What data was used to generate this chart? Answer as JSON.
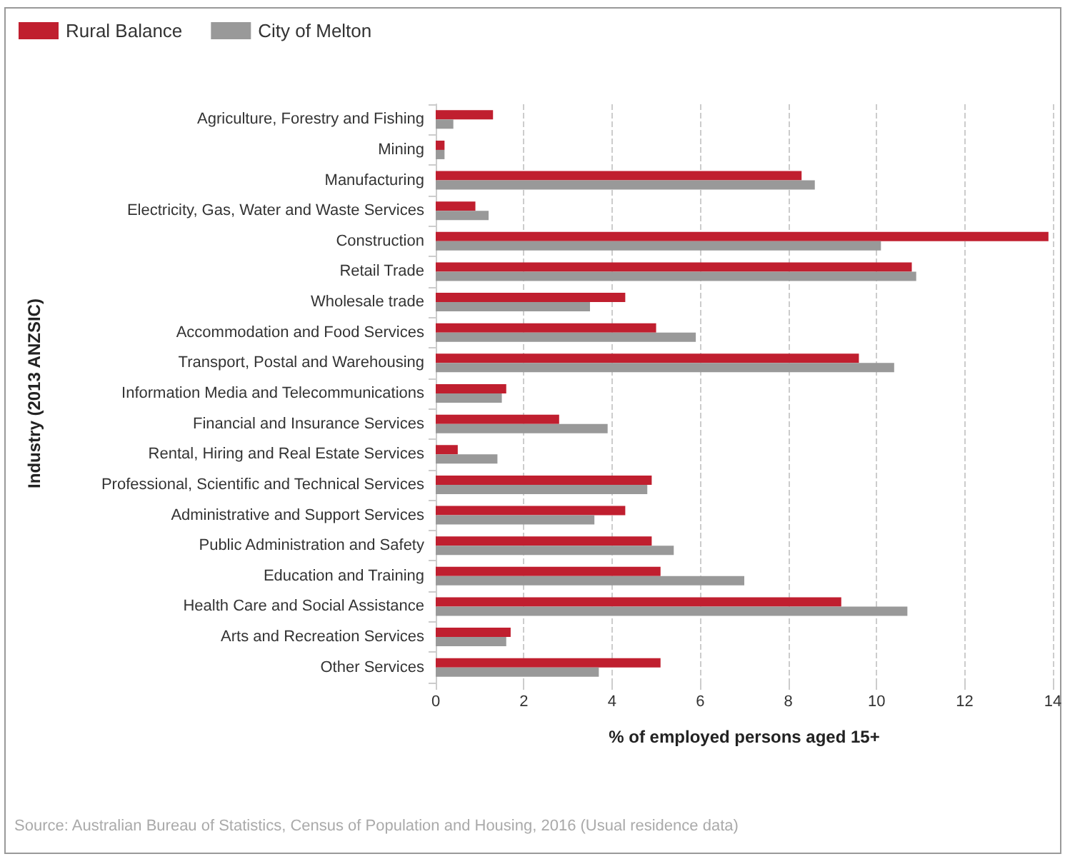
{
  "chart_data": {
    "type": "bar",
    "orientation": "horizontal",
    "xlabel": "% of employed persons aged 15+",
    "ylabel": "Industry (2013 ANZSIC)",
    "categories": [
      "Agriculture, Forestry and Fishing",
      "Mining",
      "Manufacturing",
      "Electricity, Gas, Water and Waste Services",
      "Construction",
      "Retail Trade",
      "Wholesale trade",
      "Accommodation and Food Services",
      "Transport, Postal and Warehousing",
      "Information Media and Telecommunications",
      "Financial and Insurance Services",
      "Rental, Hiring and Real Estate Services",
      "Professional, Scientific and Technical Services",
      "Administrative and Support Services",
      "Public Administration and Safety",
      "Education and Training",
      "Health Care and Social Assistance",
      "Arts and Recreation Services",
      "Other Services"
    ],
    "series": [
      {
        "name": "Rural Balance",
        "color": "#c01f2f",
        "values": [
          1.3,
          0.2,
          8.3,
          0.9,
          13.9,
          10.8,
          4.3,
          5.0,
          9.6,
          1.6,
          2.8,
          0.5,
          4.9,
          4.3,
          4.9,
          5.1,
          9.2,
          1.7,
          5.1
        ]
      },
      {
        "name": "City of Melton",
        "color": "#999999",
        "values": [
          0.4,
          0.2,
          8.6,
          1.2,
          10.1,
          10.9,
          3.5,
          5.9,
          10.4,
          1.5,
          3.9,
          1.4,
          4.8,
          3.6,
          5.4,
          7.0,
          10.7,
          1.6,
          3.7
        ]
      }
    ],
    "xlim": [
      0,
      14
    ],
    "xticks": [
      0,
      2,
      4,
      6,
      8,
      10,
      12,
      14
    ],
    "grid": "x",
    "legend": "top left",
    "annotations": [
      "Source: Australian Bureau of Statistics, Census of Population and Housing, 2016 (Usual residence data)"
    ]
  }
}
